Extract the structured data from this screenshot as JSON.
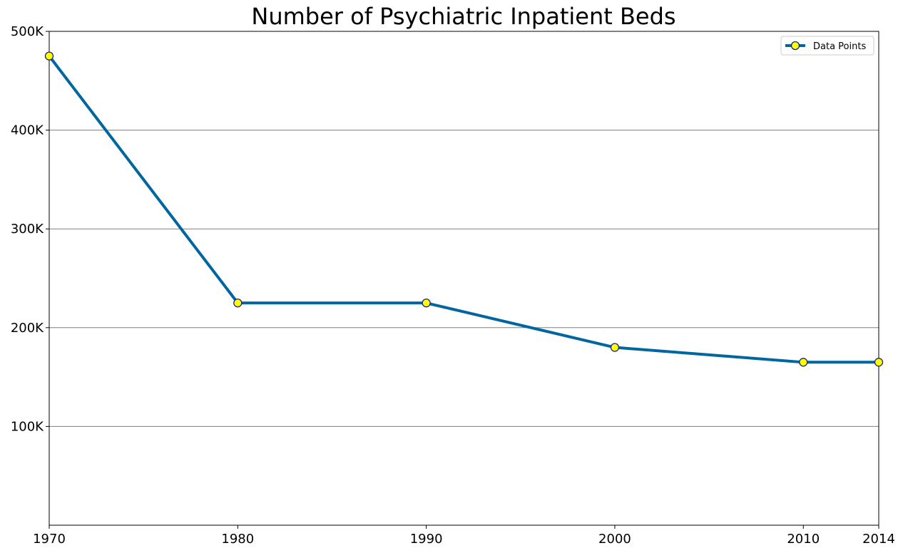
{
  "chart_data": {
    "type": "line",
    "title": "Number of Psychiatric Inpatient Beds",
    "xlabel": "",
    "ylabel": "",
    "x": [
      1970,
      1980,
      1990,
      2000,
      2010,
      2014
    ],
    "xlim": [
      1970,
      2014
    ],
    "ylim": [
      0,
      500000
    ],
    "x_ticks": [
      1970,
      1980,
      1990,
      2000,
      2010,
      2014
    ],
    "x_tick_labels": [
      "1970",
      "1980",
      "1990",
      "2000",
      "2010",
      "2014"
    ],
    "y_ticks": [
      100000,
      200000,
      300000,
      400000,
      500000
    ],
    "y_tick_labels": [
      "100K",
      "200K",
      "300K",
      "400K",
      "500K"
    ],
    "grid": "horizontal",
    "legend_position": "top-right",
    "series": [
      {
        "name": "Data Points",
        "values": [
          475000,
          225000,
          225000,
          180000,
          165000,
          165000
        ],
        "line_color": "#0066a0",
        "marker_fill": "#ffff00",
        "marker_edge": "#1a237e"
      }
    ],
    "grid_color": "#808080",
    "background": "#ffffff"
  }
}
